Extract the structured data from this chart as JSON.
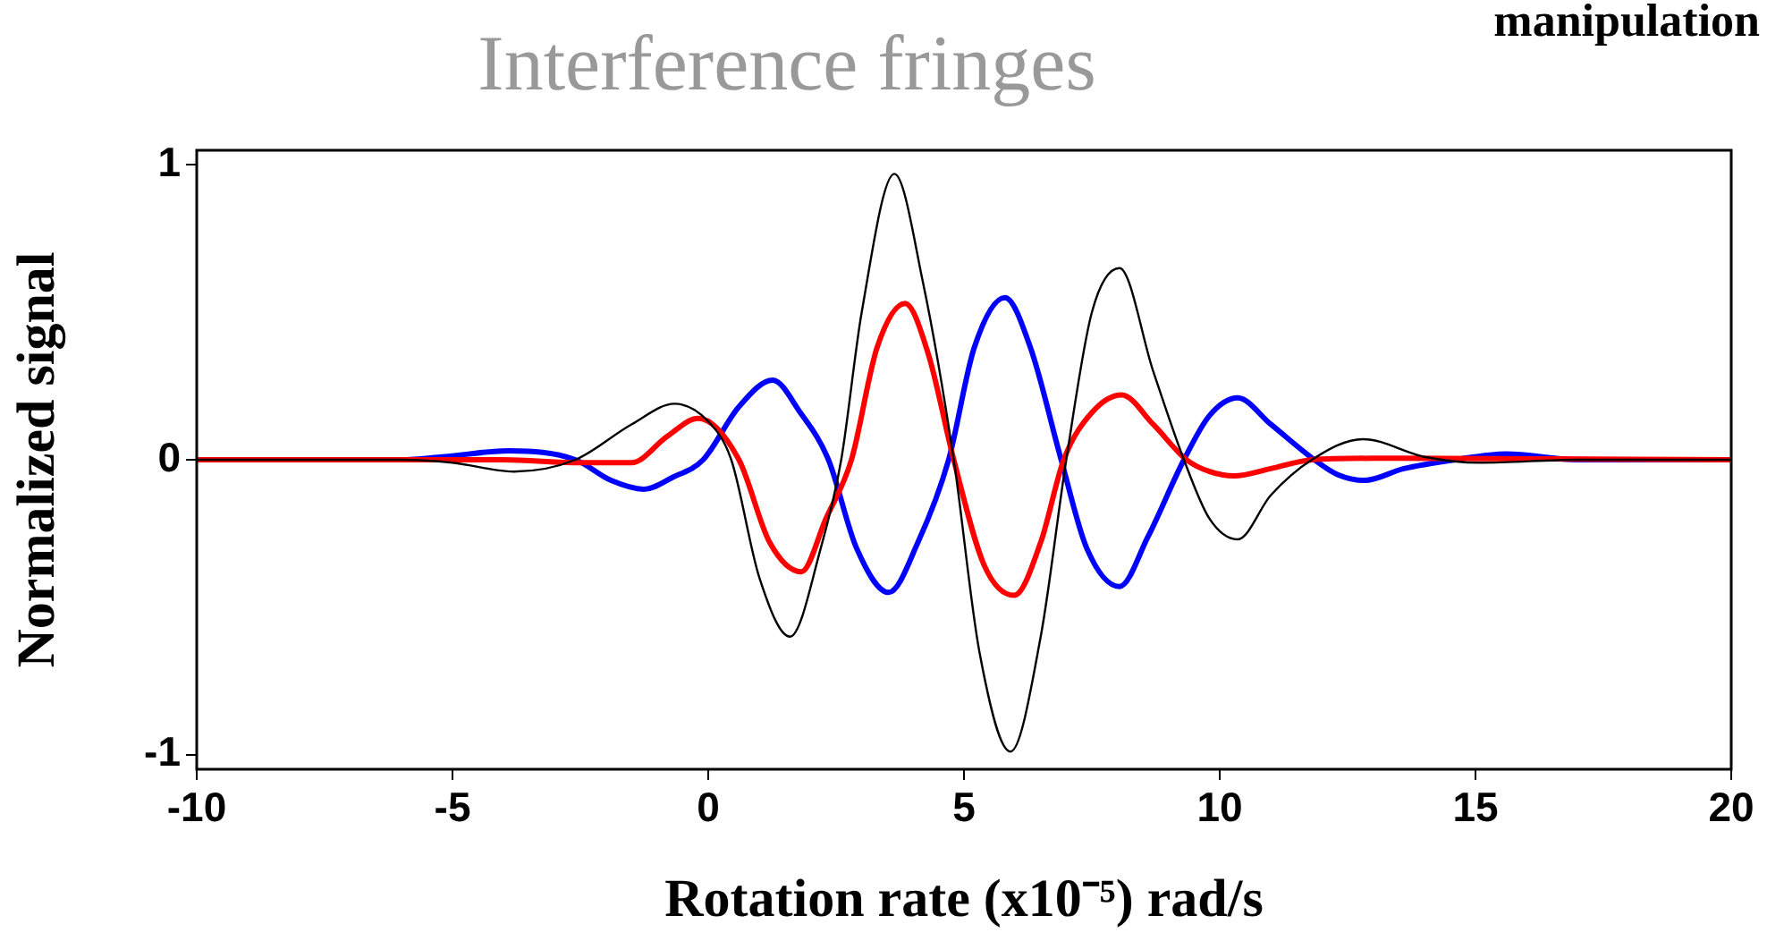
{
  "chart_data": {
    "type": "line",
    "title": "Interference fringes",
    "xlabel": "Rotation rate (x10⁻⁵) rad/s",
    "ylabel": "Normalized signal",
    "annotations": [
      "manipulation"
    ],
    "xlim": [
      -10,
      20
    ],
    "xticks": [
      -10,
      -5,
      0,
      5,
      10,
      15,
      20
    ],
    "ylim": [
      -1.05,
      1.05
    ],
    "yticks": [
      -1,
      0,
      1
    ],
    "grid": false,
    "legend": false,
    "marker": "none",
    "line_style": "solid",
    "series": [
      {
        "color": "#000000",
        "x": [
          -10,
          -6,
          -5,
          -3.8,
          -2.6,
          -1.5,
          -0.66,
          0,
          0.45,
          1.0,
          1.6,
          2.2,
          2.6,
          3.0,
          3.64,
          4.2,
          4.8,
          5.3,
          5.91,
          6.5,
          7.0,
          7.5,
          8.04,
          8.7,
          9.3,
          9.8,
          10.35,
          11,
          11.8,
          12.8,
          14,
          15.1,
          17,
          20
        ],
        "values": [
          0,
          0,
          -0.01,
          -0.04,
          0,
          0.12,
          0.19,
          0.13,
          0,
          -0.4,
          -0.6,
          -0.3,
          0,
          0.5,
          0.97,
          0.6,
          0,
          -0.65,
          -0.99,
          -0.6,
          0,
          0.5,
          0.65,
          0.3,
          0,
          -0.2,
          -0.27,
          -0.12,
          0,
          0.07,
          0.01,
          -0.01,
          0,
          0
        ]
      },
      {
        "color": "#ff0000",
        "x": [
          -10,
          -4,
          -2.5,
          -1.5,
          -0.8,
          -0.2,
          0.6,
          1.2,
          1.82,
          2.3,
          2.8,
          3.3,
          3.85,
          4.3,
          4.8,
          5.4,
          5.98,
          6.5,
          6.95,
          7.5,
          8.08,
          8.7,
          9.35,
          9.8,
          10.28,
          11,
          11.8,
          13,
          20
        ],
        "values": [
          0,
          0,
          -0.01,
          -0.01,
          0.08,
          0.14,
          0,
          -0.28,
          -0.38,
          -0.2,
          0,
          0.38,
          0.53,
          0.36,
          0,
          -0.36,
          -0.46,
          -0.28,
          0,
          0.16,
          0.22,
          0.12,
          0,
          -0.04,
          -0.055,
          -0.03,
          0,
          0.005,
          0
        ]
      },
      {
        "color": "#0000ff",
        "x": [
          -10,
          -6,
          -5.2,
          -3.88,
          -2.6,
          -1.9,
          -1.26,
          -0.7,
          -0.1,
          0.6,
          1.26,
          1.8,
          2.35,
          2.9,
          3.53,
          4.1,
          4.7,
          5.2,
          5.8,
          6.3,
          6.9,
          7.4,
          8.04,
          8.6,
          9.3,
          9.8,
          10.35,
          11,
          11.85,
          12.3,
          12.83,
          13.6,
          14.6,
          15.6,
          17,
          20
        ],
        "values": [
          0,
          0,
          0.01,
          0.03,
          0,
          -0.07,
          -0.1,
          -0.06,
          0,
          0.18,
          0.27,
          0.16,
          0,
          -0.3,
          -0.45,
          -0.28,
          0,
          0.38,
          0.55,
          0.38,
          0,
          -0.3,
          -0.43,
          -0.26,
          0,
          0.15,
          0.21,
          0.12,
          0,
          -0.05,
          -0.07,
          -0.03,
          0,
          0.02,
          0,
          0
        ]
      }
    ]
  }
}
